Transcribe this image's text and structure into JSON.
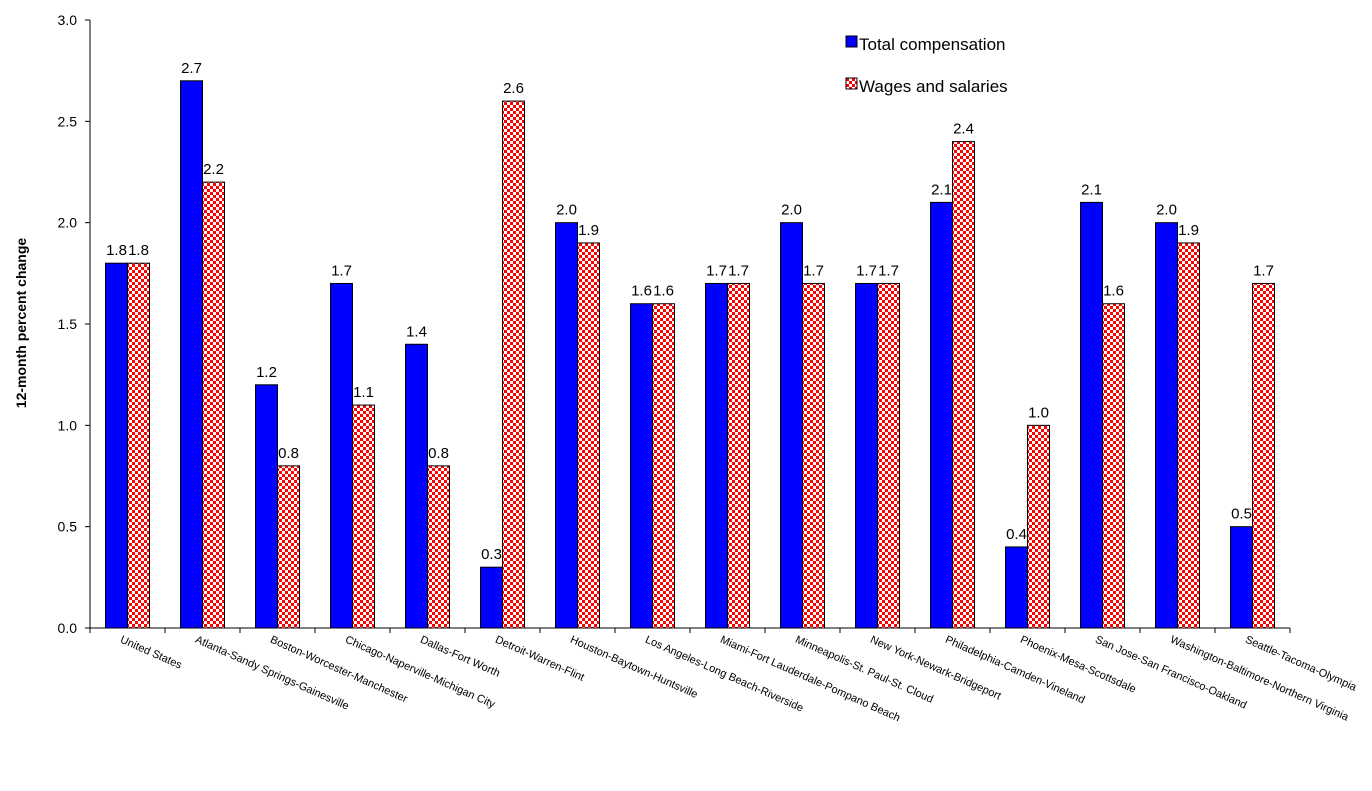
{
  "chart_data": {
    "type": "bar",
    "title": "",
    "xlabel": "",
    "ylabel": "12-month percent change",
    "ylim": [
      0,
      3.0
    ],
    "yticks": [
      "0.0",
      "0.5",
      "1.0",
      "1.5",
      "2.0",
      "2.5",
      "3.0"
    ],
    "legend_position": "top-right",
    "grid": false,
    "categories": [
      "United States",
      "Atlanta-Sandy Springs-Gainesville",
      "Boston-Worcester-Manchester",
      "Chicago-Naperville-Michigan City",
      "Dallas-Fort Worth",
      "Detroit-Warren-Flint",
      "Houston-Baytown-Huntsville",
      "Los Angeles-Long Beach-Riverside",
      "Miami-Fort Lauderdale-Pompano Beach",
      "Minneapolis-St. Paul-St. Cloud",
      "New York-Newark-Bridgeport",
      "Philadelphia-Camden-Vineland",
      "Phoenix-Mesa-Scottsdale",
      "San Jose-San Francisco-Oakland",
      "Washington-Baltimore-Northern Virginia",
      "Seattle-Tacoma-Olympia"
    ],
    "series": [
      {
        "name": "Total compensation",
        "color": "#0000ff",
        "pattern": "solid",
        "values": [
          1.8,
          2.7,
          1.2,
          1.7,
          1.4,
          0.3,
          2.0,
          1.6,
          1.7,
          2.0,
          1.7,
          2.1,
          0.4,
          2.1,
          2.0,
          0.5
        ],
        "labels": [
          "1.8",
          "2.7",
          "1.2",
          "1.7",
          "1.4",
          "0.3",
          "2.0",
          "1.6",
          "1.7",
          "2.0",
          "1.7",
          "2.1",
          "0.4",
          "2.1",
          "2.0",
          "0.5"
        ]
      },
      {
        "name": "Wages and salaries",
        "color": "#ff0000",
        "pattern": "checkerboard",
        "values": [
          1.8,
          2.2,
          0.8,
          1.1,
          0.8,
          2.6,
          1.9,
          1.6,
          1.7,
          1.7,
          1.7,
          2.4,
          1.0,
          1.6,
          1.9,
          1.7
        ],
        "labels": [
          "1.8",
          "2.2",
          "0.8",
          "1.1",
          "0.8",
          "2.6",
          "1.9",
          "1.6",
          "1.7",
          "1.7",
          "1.7",
          "2.4",
          "1.0",
          "1.6",
          "1.9",
          "1.7"
        ]
      }
    ]
  }
}
